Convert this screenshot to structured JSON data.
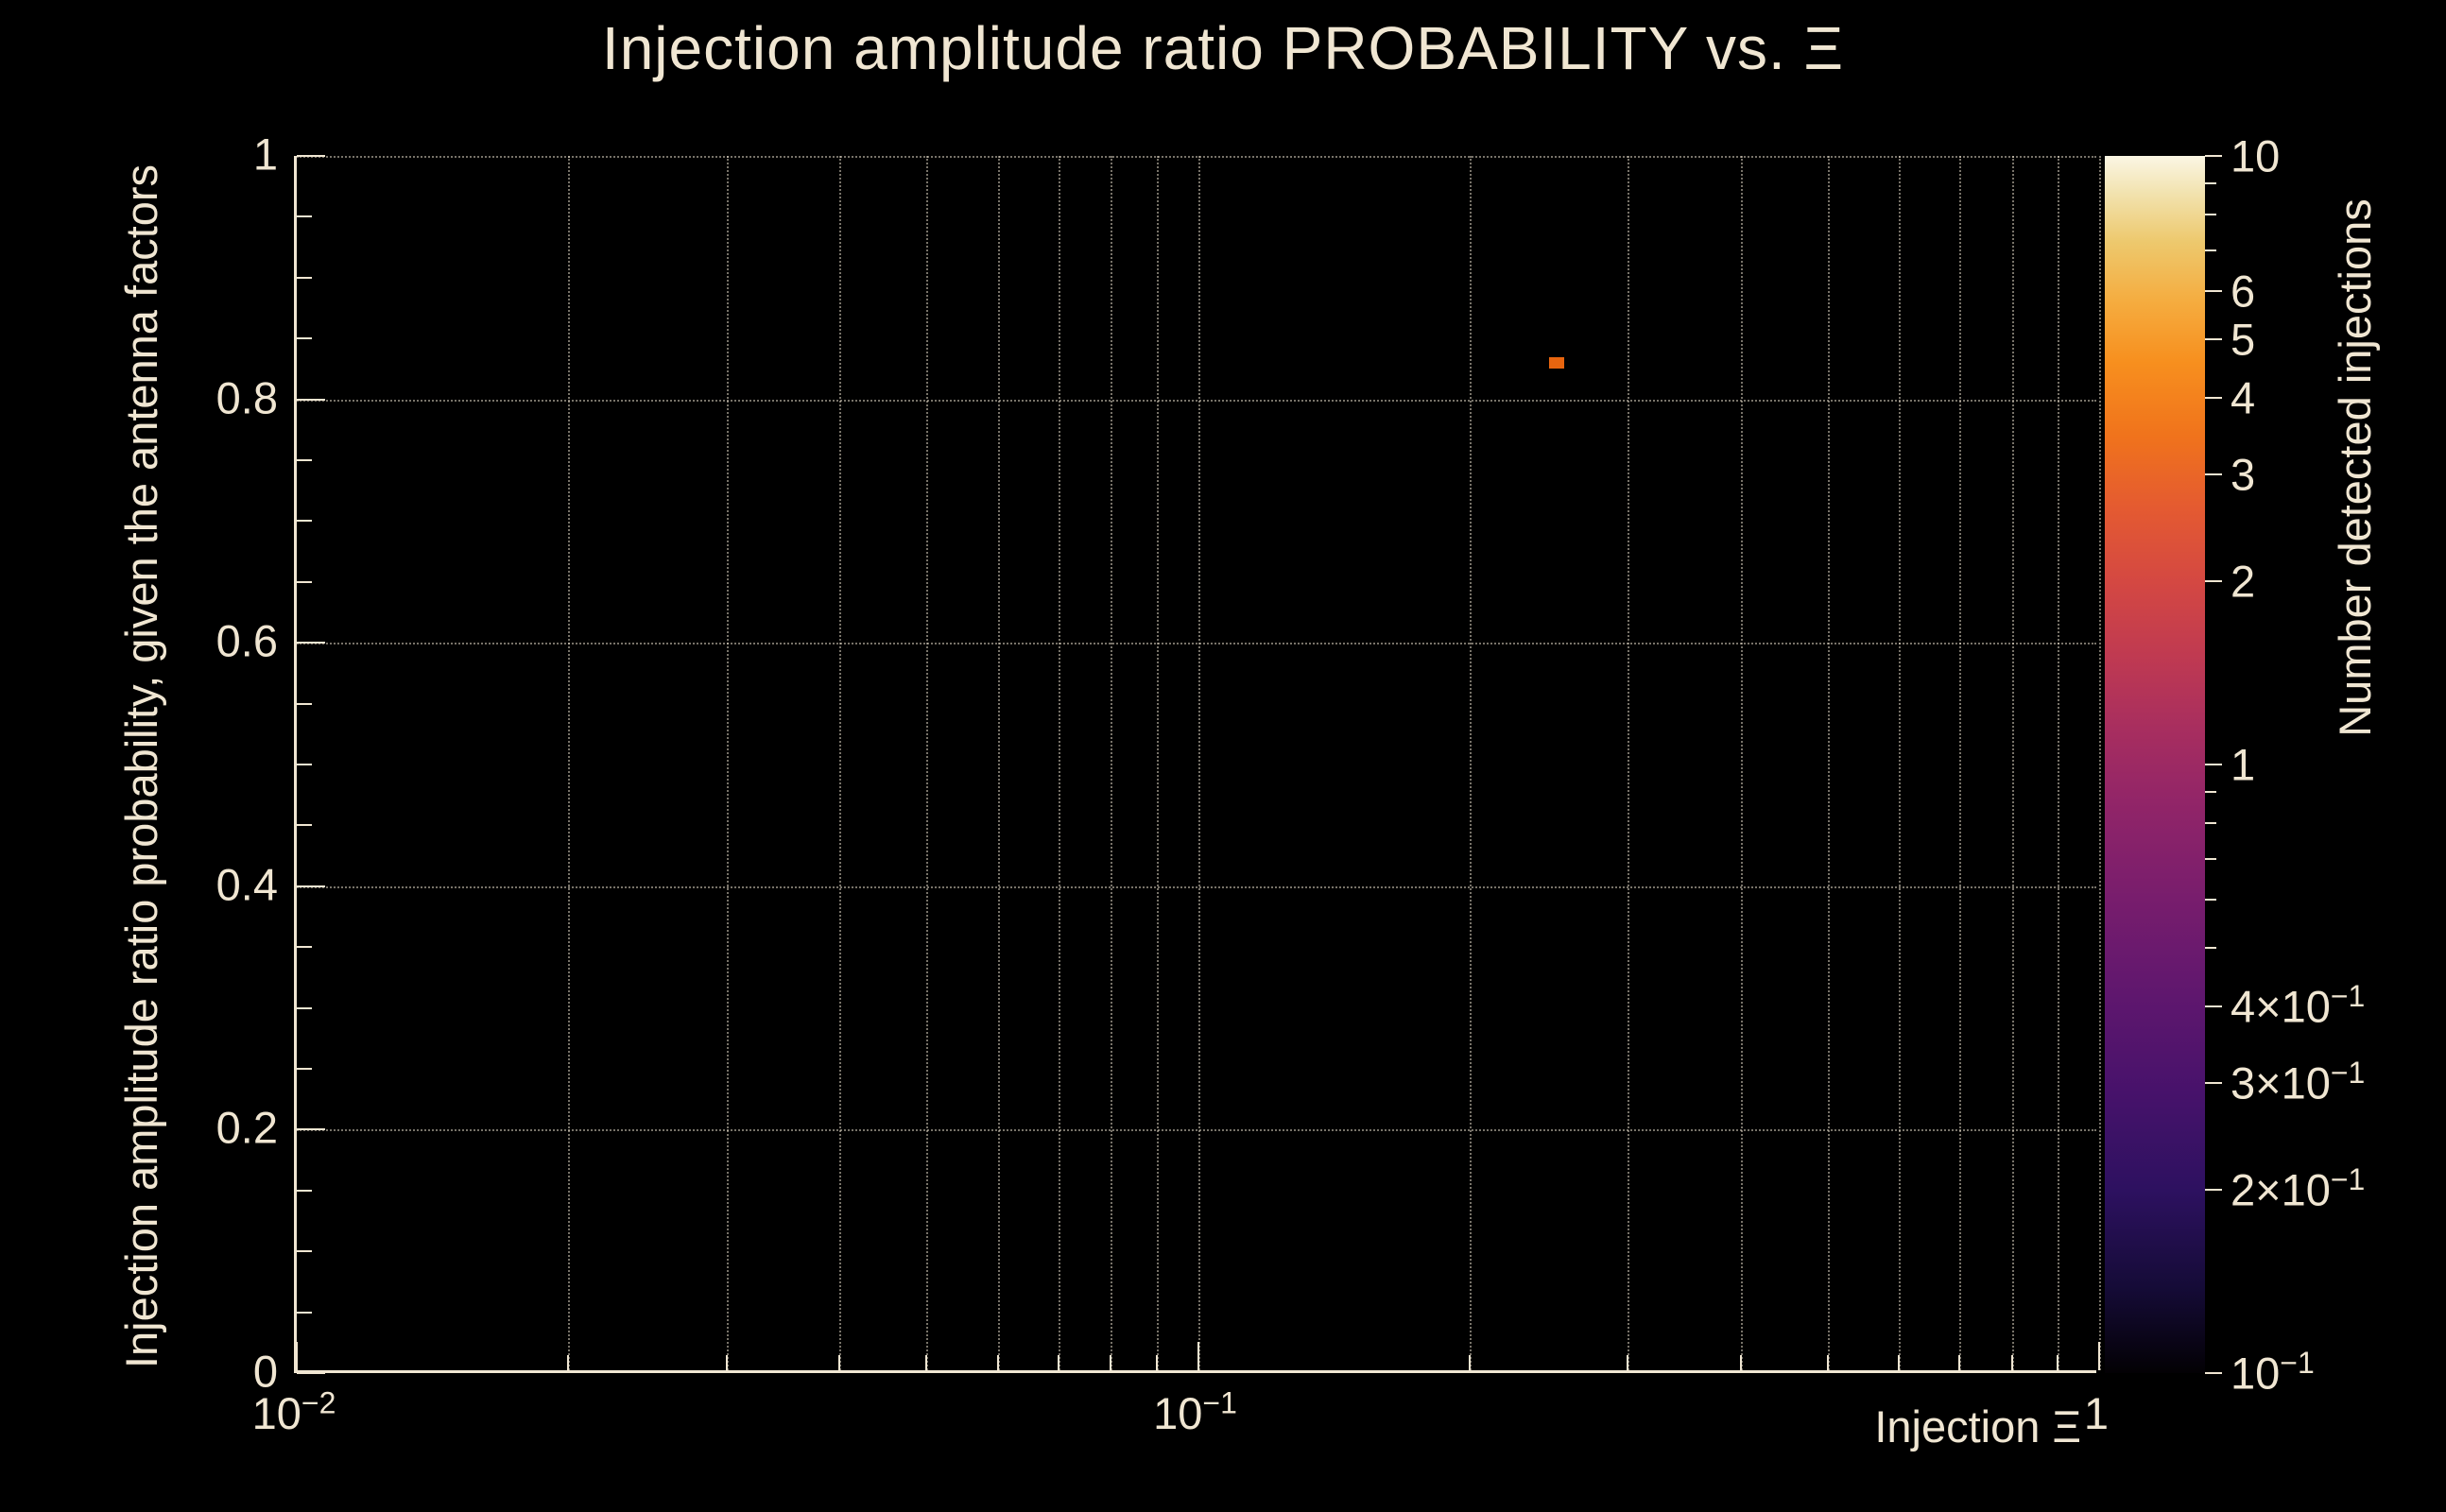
{
  "chart_data": {
    "type": "heatmap",
    "title": "Injection amplitude ratio PROBABILITY vs.  Ξ",
    "xlabel": "Injection Ξ",
    "ylabel": "Injection amplitude ratio probability, given the antenna factors",
    "x_axis": {
      "scale": "log",
      "min": 0.01,
      "max": 1,
      "major_ticks": [
        {
          "value": 0.01,
          "label": "10^-2"
        },
        {
          "value": 0.1,
          "label": "10^-1"
        },
        {
          "value": 1,
          "label": "1"
        }
      ]
    },
    "y_axis": {
      "scale": "linear",
      "min": 0,
      "max": 1,
      "minor_step": 0.05,
      "major_ticks": [
        {
          "value": 0,
          "label": "0"
        },
        {
          "value": 0.2,
          "label": "0.2"
        },
        {
          "value": 0.4,
          "label": "0.4"
        },
        {
          "value": 0.6,
          "label": "0.6"
        },
        {
          "value": 0.8,
          "label": "0.8"
        },
        {
          "value": 1,
          "label": "1"
        }
      ]
    },
    "grid": true,
    "colorbar": {
      "label": "Number detected injections",
      "scale": "log",
      "min": 0.1,
      "max": 10,
      "major_ticks": [
        {
          "value": 10,
          "label": "10"
        },
        {
          "value": 6,
          "label": "6"
        },
        {
          "value": 5,
          "label": "5"
        },
        {
          "value": 4,
          "label": "4"
        },
        {
          "value": 3,
          "label": "3"
        },
        {
          "value": 2,
          "label": "2"
        },
        {
          "value": 1,
          "label": "1"
        },
        {
          "value": 0.4,
          "label": "4×10^-1"
        },
        {
          "value": 0.3,
          "label": "3×10^-1"
        },
        {
          "value": 0.2,
          "label": "2×10^-1"
        },
        {
          "value": 0.1,
          "label": "10^-1"
        }
      ],
      "minor_ticks": [
        9,
        8,
        7,
        0.9,
        0.8,
        0.7,
        0.6,
        0.5
      ],
      "gradient_stops": [
        {
          "pos": 0.0,
          "color": "#030104"
        },
        {
          "pos": 0.07,
          "color": "#150b37"
        },
        {
          "pos": 0.15,
          "color": "#2d1160"
        },
        {
          "pos": 0.23,
          "color": "#47126b"
        },
        {
          "pos": 0.31,
          "color": "#5f176e"
        },
        {
          "pos": 0.39,
          "color": "#781d6d"
        },
        {
          "pos": 0.47,
          "color": "#922568"
        },
        {
          "pos": 0.53,
          "color": "#a82e5f"
        },
        {
          "pos": 0.59,
          "color": "#c03a51"
        },
        {
          "pos": 0.65,
          "color": "#d44842"
        },
        {
          "pos": 0.71,
          "color": "#e45a31"
        },
        {
          "pos": 0.77,
          "color": "#f0731c"
        },
        {
          "pos": 0.83,
          "color": "#f78f1e"
        },
        {
          "pos": 0.88,
          "color": "#f5ac3f"
        },
        {
          "pos": 0.93,
          "color": "#edc96e"
        },
        {
          "pos": 0.97,
          "color": "#f2e3b0"
        },
        {
          "pos": 1.0,
          "color": "#fbf6e4"
        }
      ]
    },
    "points": [
      {
        "x": 0.25,
        "y": 0.83,
        "color": "#e8650f"
      }
    ],
    "colors": {
      "background": "#000000",
      "foreground": "#f0e6d2",
      "grid": "#f0e6d2"
    }
  }
}
